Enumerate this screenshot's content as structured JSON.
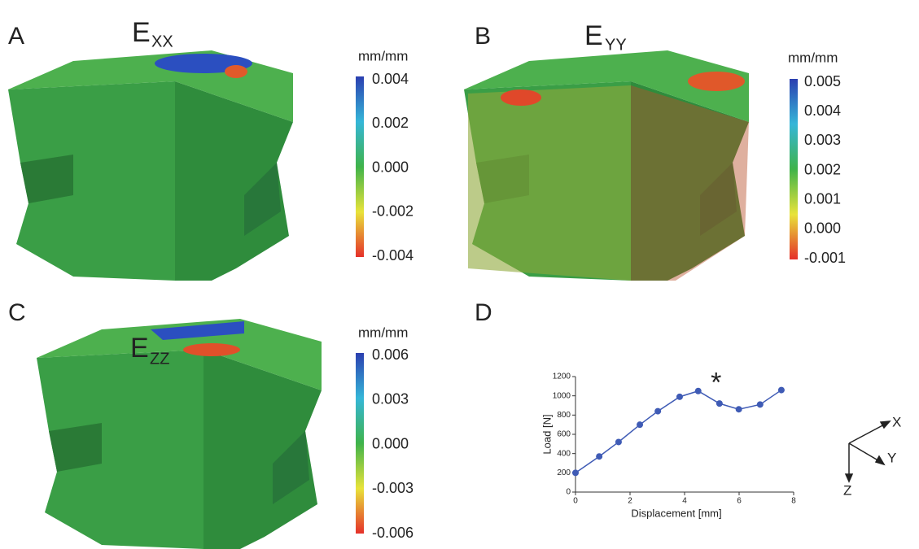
{
  "panels": [
    {
      "label": "A",
      "title": "E",
      "subscript": "XX",
      "unit": "mm/mm",
      "colorbar_labels": [
        "0.004",
        "0.002",
        "0.000",
        "-0.002",
        "-0.004"
      ]
    },
    {
      "label": "B",
      "title": "E",
      "subscript": "YY",
      "unit": "mm/mm",
      "colorbar_labels": [
        "0.005",
        "0.004",
        "0.003",
        "0.002",
        "0.001",
        "0.000",
        "-0.001"
      ]
    },
    {
      "label": "C",
      "title": "E",
      "subscript": "ZZ",
      "unit": "mm/mm",
      "colorbar_labels": [
        "0.006",
        "0.003",
        "0.000",
        "-0.003",
        "-0.006"
      ]
    }
  ],
  "chart_data": {
    "type": "line",
    "label": "D",
    "xlabel": "Displacement [mm]",
    "ylabel": "Load [N]",
    "x": [
      0,
      0.87,
      1.58,
      2.36,
      3.02,
      3.82,
      4.5,
      5.28,
      5.99,
      6.77,
      7.55
    ],
    "series": [
      {
        "color": "#3f5bb5",
        "values": [
          200,
          370,
          520,
          700,
          840,
          990,
          1050,
          920,
          860,
          910,
          1060
        ]
      }
    ],
    "xlim": [
      0,
      8
    ],
    "ylim": [
      0,
      1200
    ],
    "xticks": [
      0,
      2,
      4,
      6,
      8
    ],
    "yticks": [
      0,
      200,
      400,
      600,
      800,
      1000,
      1200
    ],
    "annotation": "*"
  },
  "axes_triad": {
    "x": "X",
    "y": "Y",
    "z": "Z"
  }
}
